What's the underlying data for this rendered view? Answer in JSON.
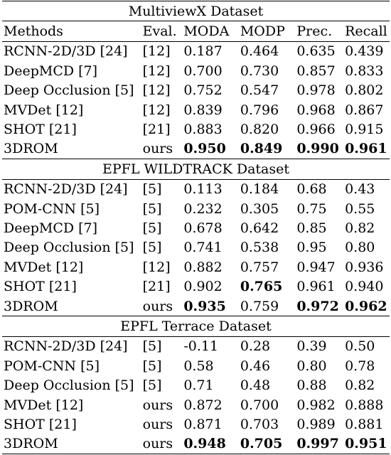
{
  "table": {
    "headers": [
      "Methods",
      "Eval.",
      "MODA",
      "MODP",
      "Prec.",
      "Recall"
    ],
    "sections": [
      {
        "title": "MultiviewX Dataset",
        "rows": [
          {
            "method": "RCNN-2D/3D [24]",
            "eval": "[12]",
            "moda": "0.187",
            "modp": "0.464",
            "prec": "0.635",
            "recall": "0.439"
          },
          {
            "method": "DeepMCD [7]",
            "eval": "[12]",
            "moda": "0.700",
            "modp": "0.730",
            "prec": "0.857",
            "recall": "0.833"
          },
          {
            "method": "Deep Occlusion [5]",
            "eval": "[12]",
            "moda": "0.752",
            "modp": "0.547",
            "prec": "0.978",
            "recall": "0.802"
          },
          {
            "method": "MVDet [12]",
            "eval": "[12]",
            "moda": "0.839",
            "modp": "0.796",
            "prec": "0.968",
            "recall": "0.867"
          },
          {
            "method": "SHOT [21]",
            "eval": "[21]",
            "moda": "0.883",
            "modp": "0.820",
            "prec": "0.966",
            "recall": "0.915"
          },
          {
            "method": "3DROM",
            "eval": "ours",
            "moda": "0.950",
            "modp": "0.849",
            "prec": "0.990",
            "recall": "0.961",
            "bold": [
              "moda",
              "modp",
              "prec",
              "recall"
            ]
          }
        ]
      },
      {
        "title": "EPFL WILDTRACK Dataset",
        "rows": [
          {
            "method": "RCNN-2D/3D [24]",
            "eval": "[5]",
            "moda": "0.113",
            "modp": "0.184",
            "prec": "0.68",
            "recall": "0.43"
          },
          {
            "method": "POM-CNN [5]",
            "eval": "[5]",
            "moda": "0.232",
            "modp": "0.305",
            "prec": "0.75",
            "recall": "0.55"
          },
          {
            "method": "DeepMCD [7]",
            "eval": "[5]",
            "moda": "0.678",
            "modp": "0.642",
            "prec": "0.85",
            "recall": "0.82"
          },
          {
            "method": "Deep Occlusion [5]",
            "eval": "[5]",
            "moda": "0.741",
            "modp": "0.538",
            "prec": "0.95",
            "recall": "0.80"
          },
          {
            "method": "MVDet [12]",
            "eval": "[12]",
            "moda": "0.882",
            "modp": "0.757",
            "prec": "0.947",
            "recall": "0.936"
          },
          {
            "method": "SHOT [21]",
            "eval": "[21]",
            "moda": "0.902",
            "modp": "0.765",
            "prec": "0.961",
            "recall": "0.940",
            "bold": [
              "modp"
            ]
          },
          {
            "method": "3DROM",
            "eval": "ours",
            "moda": "0.935",
            "modp": "0.759",
            "prec": "0.972",
            "recall": "0.962",
            "bold": [
              "moda",
              "prec",
              "recall"
            ]
          }
        ]
      },
      {
        "title": "EPFL Terrace Dataset",
        "rows": [
          {
            "method": "RCNN-2D/3D [24]",
            "eval": "[5]",
            "moda": "-0.11",
            "modp": "0.28",
            "prec": "0.39",
            "recall": "0.50"
          },
          {
            "method": "POM-CNN [5]",
            "eval": "[5]",
            "moda": "0.58",
            "modp": "0.46",
            "prec": "0.80",
            "recall": "0.78"
          },
          {
            "method": "Deep Occlusion [5]",
            "eval": "[5]",
            "moda": "0.71",
            "modp": "0.48",
            "prec": "0.88",
            "recall": "0.82"
          },
          {
            "method": "MVDet [12]",
            "eval": "ours",
            "moda": "0.872",
            "modp": "0.700",
            "prec": "0.982",
            "recall": "0.888"
          },
          {
            "method": "SHOT [21]",
            "eval": "ours",
            "moda": "0.871",
            "modp": "0.703",
            "prec": "0.989",
            "recall": "0.881"
          },
          {
            "method": "3DROM",
            "eval": "ours",
            "moda": "0.948",
            "modp": "0.705",
            "prec": "0.997",
            "recall": "0.951",
            "bold": [
              "moda",
              "modp",
              "prec",
              "recall"
            ]
          }
        ]
      }
    ]
  }
}
